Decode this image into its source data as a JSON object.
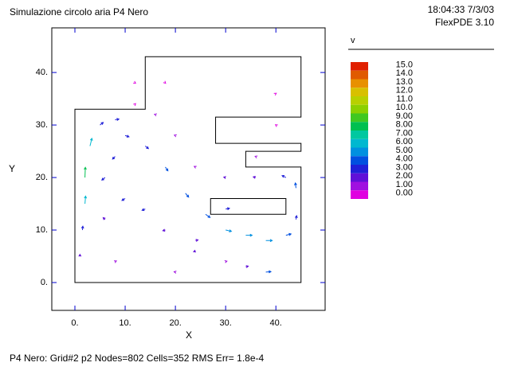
{
  "chart_data": {
    "type": "vector",
    "title": "Simulazione circolo aria P4 Nero",
    "timestamp": "18:04:33 7/3/03",
    "software": "FlexPDE 3.10",
    "footer": "P4 Nero:  Grid#2  p2  Nodes=802 Cells=352 RMS Err= 1.8e-4",
    "x_label": "X",
    "y_label": "Y",
    "xlim": [
      -4.6,
      49.8
    ],
    "ylim": [
      -5.3,
      48.5
    ],
    "xticks": [
      {
        "value": 0,
        "label": "0."
      },
      {
        "value": 10,
        "label": "10."
      },
      {
        "value": 20,
        "label": "20."
      },
      {
        "value": 30,
        "label": "30."
      },
      {
        "value": 40,
        "label": "40."
      }
    ],
    "yticks": [
      {
        "value": 0,
        "label": "0."
      },
      {
        "value": 10,
        "label": "10."
      },
      {
        "value": 20,
        "label": "20."
      },
      {
        "value": 30,
        "label": "30."
      },
      {
        "value": 40,
        "label": "40."
      }
    ],
    "boundary": {
      "x": [
        0,
        45,
        45,
        34,
        34,
        45,
        45,
        28,
        28,
        45,
        45,
        14,
        14,
        0
      ],
      "y": [
        0,
        0,
        22,
        22,
        25,
        25,
        26.5,
        26.5,
        31.5,
        31.5,
        43,
        43,
        33,
        33
      ]
    },
    "hole": {
      "x": [
        27,
        42,
        42,
        27
      ],
      "y": [
        13,
        13,
        16,
        16
      ]
    },
    "legend_title": "v",
    "levels": [
      {
        "value": 15,
        "label": "15.0"
      },
      {
        "value": 14,
        "label": "14.0"
      },
      {
        "value": 13,
        "label": "13.0"
      },
      {
        "value": 12,
        "label": "12.0"
      },
      {
        "value": 11,
        "label": "11.0"
      },
      {
        "value": 10,
        "label": "10.0"
      },
      {
        "value": 9,
        "label": "9.00"
      },
      {
        "value": 8,
        "label": "8.00"
      },
      {
        "value": 7,
        "label": "7.00"
      },
      {
        "value": 6,
        "label": "6.00"
      },
      {
        "value": 5,
        "label": "5.00"
      },
      {
        "value": 4,
        "label": "4.00"
      },
      {
        "value": 3,
        "label": "3.00"
      },
      {
        "value": 2,
        "label": "2.00"
      },
      {
        "value": 1,
        "label": "1.00"
      },
      {
        "value": 0,
        "label": "0.00"
      }
    ],
    "level_colors": [
      "#e02000",
      "#e05a00",
      "#e89000",
      "#d8c000",
      "#b8d000",
      "#8cd000",
      "#40c820",
      "#00c050",
      "#00c8a0",
      "#00b8d0",
      "#0090e0",
      "#0050e0",
      "#2020d8",
      "#6010d8",
      "#a010e0",
      "#e000e0"
    ],
    "vectors": {
      "x": [
        1,
        1.5,
        2,
        2,
        3,
        5,
        8,
        10,
        14,
        18,
        22,
        26,
        30,
        34,
        38,
        42,
        44,
        44,
        42,
        36,
        30,
        24,
        20,
        16,
        12,
        8,
        6,
        10,
        14,
        18,
        24,
        30,
        34,
        20,
        24,
        30,
        36,
        40,
        18,
        12,
        6,
        8,
        38,
        40
      ],
      "y": [
        5,
        10,
        15,
        20,
        26,
        30,
        31,
        28,
        26,
        22,
        17,
        13,
        10,
        9,
        8,
        9,
        12,
        18,
        20,
        20,
        20,
        22,
        28,
        32,
        34,
        24,
        20,
        16,
        14,
        10,
        6,
        4,
        3,
        2,
        8,
        14,
        24,
        36,
        38,
        38,
        12,
        4,
        2,
        30
      ],
      "vx": [
        0,
        0.3,
        0.5,
        0.3,
        1.5,
        2.5,
        3,
        3,
        2.5,
        2,
        2.5,
        3.5,
        4.5,
        5,
        5,
        4,
        0.5,
        -0.5,
        -3,
        -2,
        -1.5,
        -1,
        -0.8,
        -0.6,
        0.3,
        -2,
        -2.5,
        -2.5,
        -2.5,
        -2,
        -1.5,
        1,
        2,
        -1,
        2,
        3,
        -0.5,
        0.3,
        0.2,
        0.3,
        -1.5,
        1,
        4,
        -0.3
      ],
      "vy": [
        1.5,
        3,
        6,
        8,
        6,
        2,
        0.5,
        -1,
        -2,
        -3,
        -3,
        -2.5,
        -1,
        0,
        0,
        1,
        3,
        4,
        1.5,
        0.5,
        0.3,
        0.5,
        0.3,
        0.2,
        0.3,
        -2,
        -2,
        -1.5,
        -1,
        -0.5,
        -0.5,
        0.3,
        0.5,
        0.2,
        0.5,
        0.5,
        0.2,
        0.2,
        -0.2,
        -0.2,
        1.5,
        0.5,
        0.3,
        0.2
      ]
    }
  }
}
